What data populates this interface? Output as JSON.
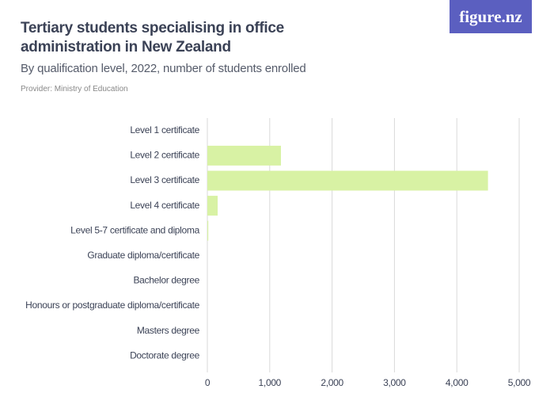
{
  "logo": "figure.nz",
  "chart_data": {
    "type": "bar",
    "orientation": "horizontal",
    "title": "Tertiary students specialising in office administration in New Zealand",
    "subtitle": "By qualification level, 2022, number of students enrolled",
    "provider": "Provider: Ministry of Education",
    "categories": [
      "Level 1 certificate",
      "Level 2 certificate",
      "Level 3 certificate",
      "Level 4 certificate",
      "Level 5-7 certificate and diploma",
      "Graduate diploma/certificate",
      "Bachelor degree",
      "Honours or postgraduate diploma/certificate",
      "Masters degree",
      "Doctorate degree"
    ],
    "values": [
      0,
      1180,
      4500,
      165,
      15,
      0,
      0,
      0,
      0,
      0
    ],
    "color": "#d8f2a4",
    "xlim": [
      0,
      5000
    ],
    "xticks": [
      0,
      {
        "value": 1000,
        "label": "1,000"
      },
      {
        "value": 2000,
        "label": "2,000"
      },
      {
        "value": 3000,
        "label": "3,000"
      },
      {
        "value": 4000,
        "label": "4,000"
      },
      {
        "value": 5000,
        "label": "5,000"
      }
    ],
    "grid": true
  }
}
